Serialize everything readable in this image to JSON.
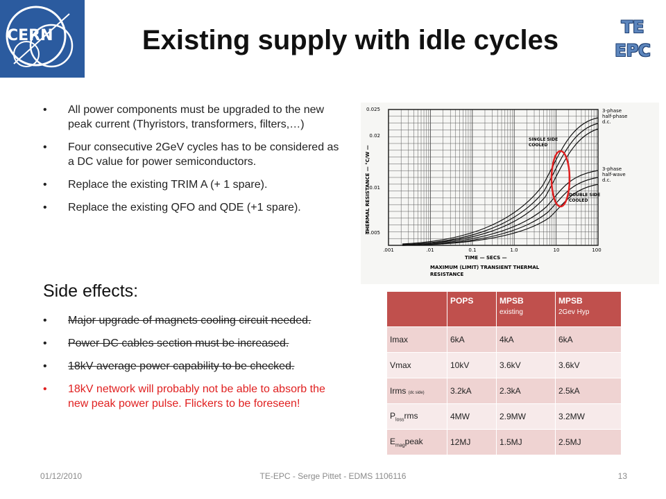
{
  "slide": {
    "title": "Existing supply with idle cycles",
    "logo_text": "CERN",
    "te_logo": {
      "line1": "TE",
      "line2": "EPC"
    }
  },
  "bullets": [
    "All power components must be upgraded to the new peak current (Thyristors, transformers, filters,…)",
    "Four consecutive 2GeV cycles has to be considered as a DC value for power semiconductors.",
    "Replace the existing TRIM A (+ 1 spare).",
    "Replace the existing QFO and QDE (+1 spare)."
  ],
  "side_effects": {
    "heading": "Side effects:",
    "items": [
      {
        "text": "Major upgrade of magnets cooling circuit needed.",
        "struck": true
      },
      {
        "text": "Power DC cables section must be increased.",
        "struck": true
      },
      {
        "text": "18kV average power capability to be checked.",
        "struck": true
      },
      {
        "text": "18kV network will probably not be able to absorb the new peak power pulse. Flickers to be foreseen!",
        "struck": false,
        "color": "#e02020"
      }
    ]
  },
  "graph": {
    "ylabel": "THERMAL RESISTANCE — °C/W —",
    "xlabel": "TIME — SECS —",
    "caption_line1": "MAXIMUM (LIMIT) TRANSIENT THERMAL",
    "caption_line2": "RESISTANCE",
    "y_ticks": [
      "0.025",
      "0.02",
      "0.01",
      "0.005"
    ],
    "x_ticks": [
      ".001",
      ".01",
      "0.1",
      "1.0",
      "10",
      "100"
    ],
    "annotations": {
      "single_side_1": "SINGLE SIDE",
      "single_side_2": "COOLED",
      "double_side_1": "DOUBLE SIDE",
      "double_side_2": "COOLED",
      "full_wave_1": "3-phase",
      "full_wave_2": "half-phase",
      "full_wave_3": "d.c.",
      "half_wave_1": "3-phase",
      "half_wave_2": "half-wave",
      "half_wave_3": "d.c."
    },
    "highlight_color": "#e02020"
  },
  "table": {
    "headers": [
      {
        "label": "",
        "sub": ""
      },
      {
        "label": "POPS",
        "sub": ""
      },
      {
        "label": "MPSB",
        "sub": "existing"
      },
      {
        "label": "MPSB",
        "sub": "2Gev Hyp"
      }
    ],
    "rows": [
      {
        "main": "Imax",
        "sub": "",
        "suffix": "",
        "values": [
          "6kA",
          "4kA",
          "6kA"
        ]
      },
      {
        "main": "Vmax",
        "sub": "",
        "suffix": "",
        "values": [
          "10kV",
          "3.6kV",
          "3.6kV"
        ]
      },
      {
        "main": "Irms",
        "sub": "(dc side)",
        "suffix": "",
        "values": [
          "3.2kA",
          "2.3kA",
          "2.5kA"
        ]
      },
      {
        "main": "P",
        "sub": "loss",
        "suffix": "rms",
        "values": [
          "4MW",
          "2.9MW",
          "3.2MW"
        ]
      },
      {
        "main": "E",
        "sub": "mag",
        "suffix": "peak",
        "values": [
          "12MJ",
          "1.5MJ",
          "2.5MJ"
        ]
      }
    ],
    "header_color": "#c0504d"
  },
  "footer": {
    "date": "01/12/2010",
    "center": "TE-EPC - Serge Pittet - EDMS 1106116",
    "page": "13"
  }
}
